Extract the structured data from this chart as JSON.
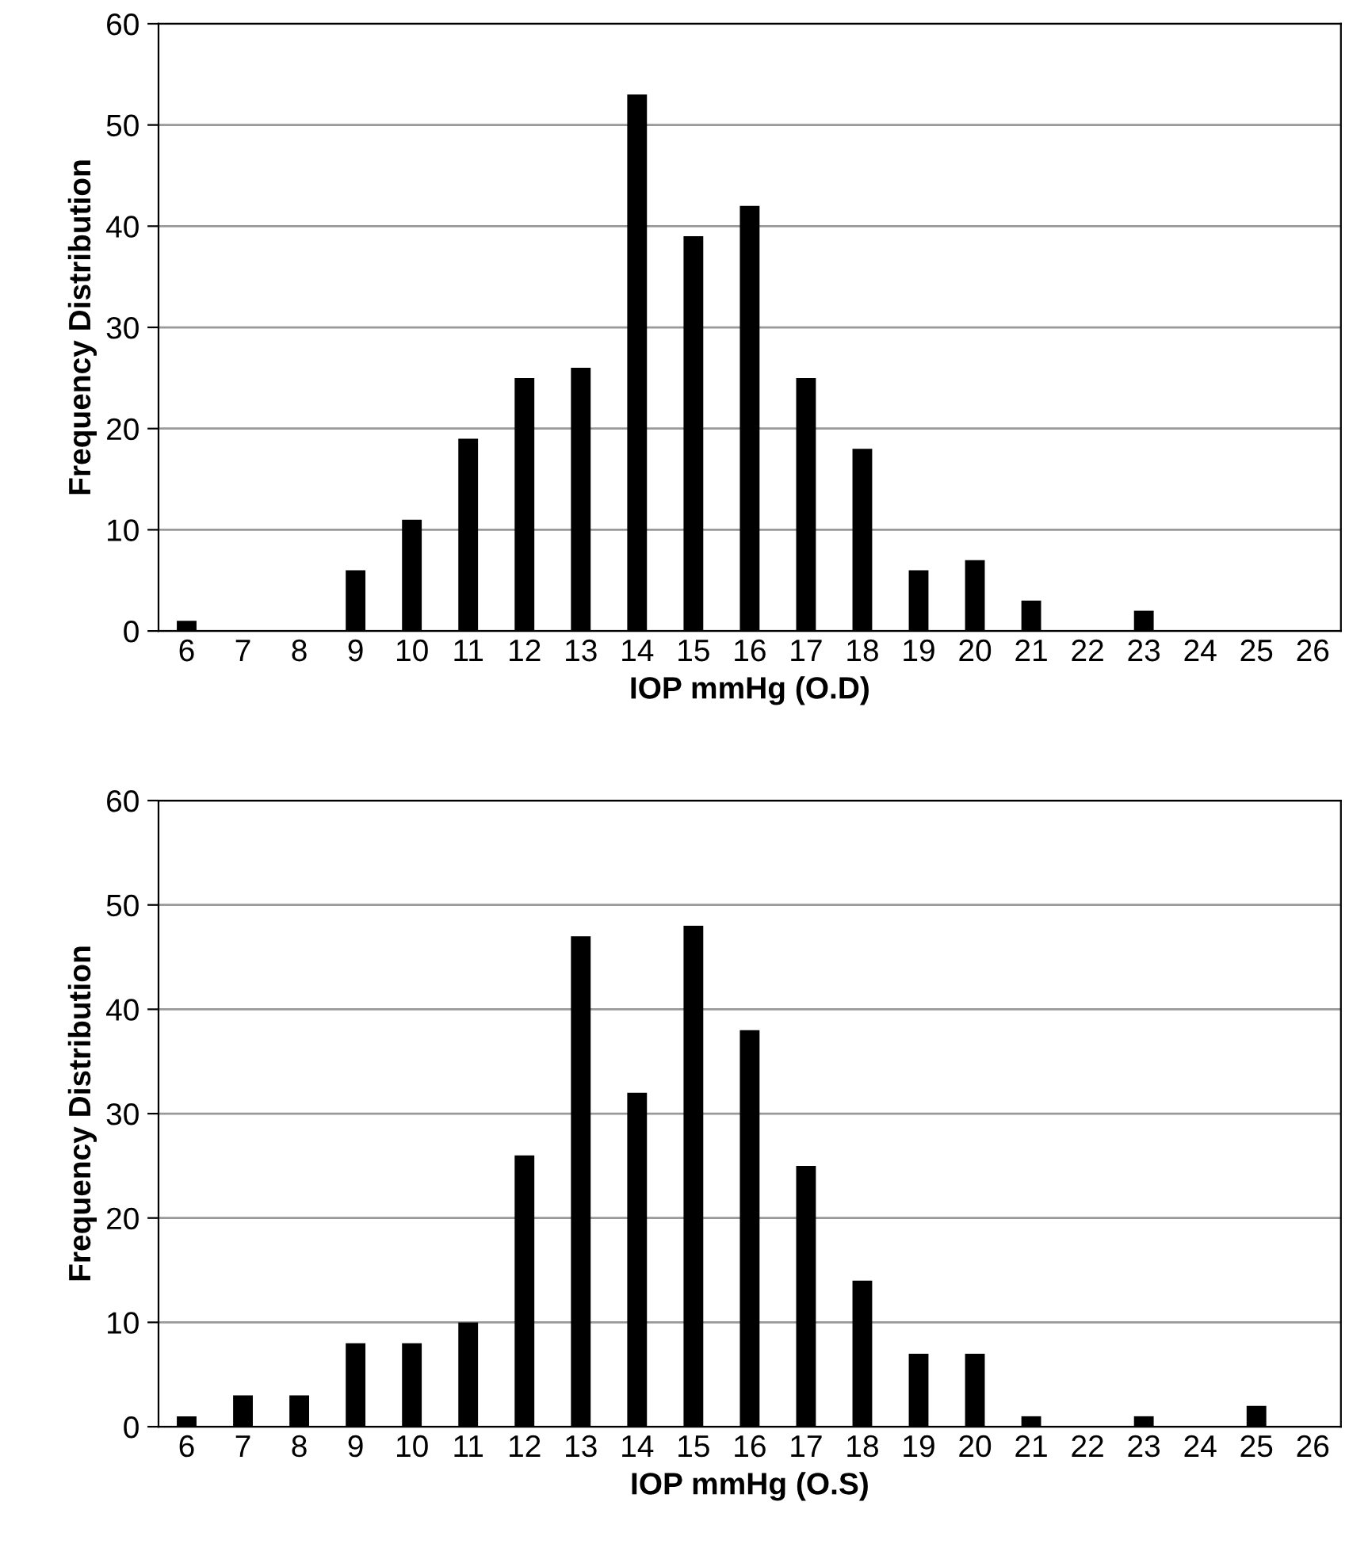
{
  "chart_data": [
    {
      "type": "bar",
      "categories": [
        "6",
        "7",
        "8",
        "9",
        "10",
        "11",
        "12",
        "13",
        "14",
        "15",
        "16",
        "17",
        "18",
        "19",
        "20",
        "21",
        "22",
        "23",
        "24",
        "25",
        "26"
      ],
      "values": [
        1,
        0,
        0,
        6,
        11,
        19,
        25,
        26,
        53,
        39,
        42,
        25,
        18,
        6,
        7,
        3,
        0,
        2,
        0,
        0,
        0
      ],
      "color": "#000000",
      "xlabel": "IOP mmHg (O.D)",
      "ylabel": "Frequency Distribution",
      "ylim": [
        0,
        60
      ],
      "yticks": [
        0,
        10,
        20,
        30,
        40,
        50,
        60
      ],
      "grid": "y"
    },
    {
      "type": "bar",
      "categories": [
        "6",
        "7",
        "8",
        "9",
        "10",
        "11",
        "12",
        "13",
        "14",
        "15",
        "16",
        "17",
        "18",
        "19",
        "20",
        "21",
        "22",
        "23",
        "24",
        "25",
        "26"
      ],
      "values": [
        1,
        3,
        3,
        8,
        8,
        10,
        26,
        47,
        32,
        48,
        38,
        25,
        14,
        7,
        7,
        1,
        0,
        1,
        0,
        2,
        0
      ],
      "color": "#000000",
      "xlabel": "IOP mmHg (O.S)",
      "ylabel": "Frequency Distribution",
      "ylim": [
        0,
        60
      ],
      "yticks": [
        0,
        10,
        20,
        30,
        40,
        50,
        60
      ],
      "grid": "y"
    }
  ]
}
